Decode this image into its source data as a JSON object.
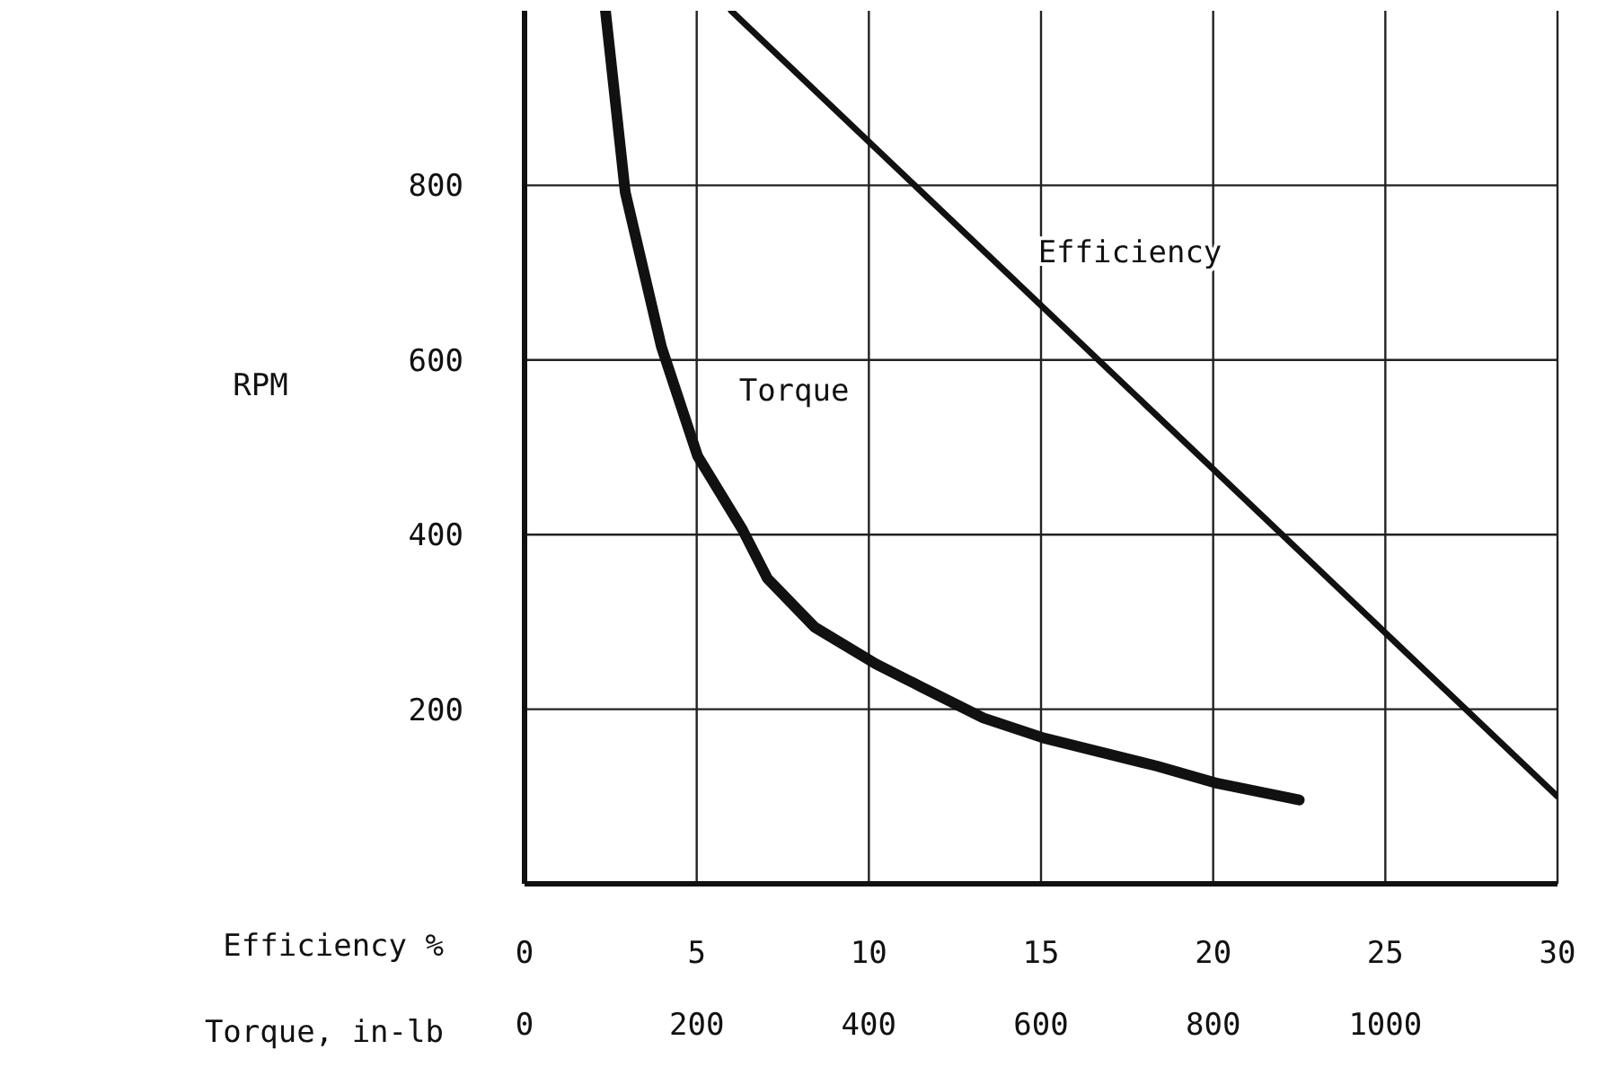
{
  "chart_data": {
    "type": "line",
    "ylabel": "RPM",
    "xlabel": "Efficiency %",
    "x2label": "Torque, in-lb",
    "xlim": [
      0,
      30
    ],
    "xticks": [
      0,
      5,
      10,
      15,
      20,
      25,
      30
    ],
    "x2lim": [
      0,
      1200
    ],
    "x2ticks": [
      0,
      200,
      400,
      600,
      800,
      1000
    ],
    "ylim": [
      0,
      1000
    ],
    "yticks": [
      200,
      400,
      600,
      800
    ],
    "grid": true,
    "legend": false,
    "marker": "none",
    "line_style": "solid",
    "series": [
      {
        "name": "Efficiency",
        "color": "#111111",
        "x": [
          6,
          30
        ],
        "values": [
          1000,
          100
        ]
      },
      {
        "name": "Torque",
        "color": "#111111",
        "axis": "x2",
        "x": [
          94,
          117,
          159,
          201,
          253,
          282,
          337,
          408,
          462,
          533,
          603,
          734,
          805,
          900
        ],
        "values": [
          1000,
          792,
          615,
          490,
          406,
          350,
          294,
          252,
          225,
          190,
          167,
          135,
          115,
          96
        ]
      }
    ]
  }
}
